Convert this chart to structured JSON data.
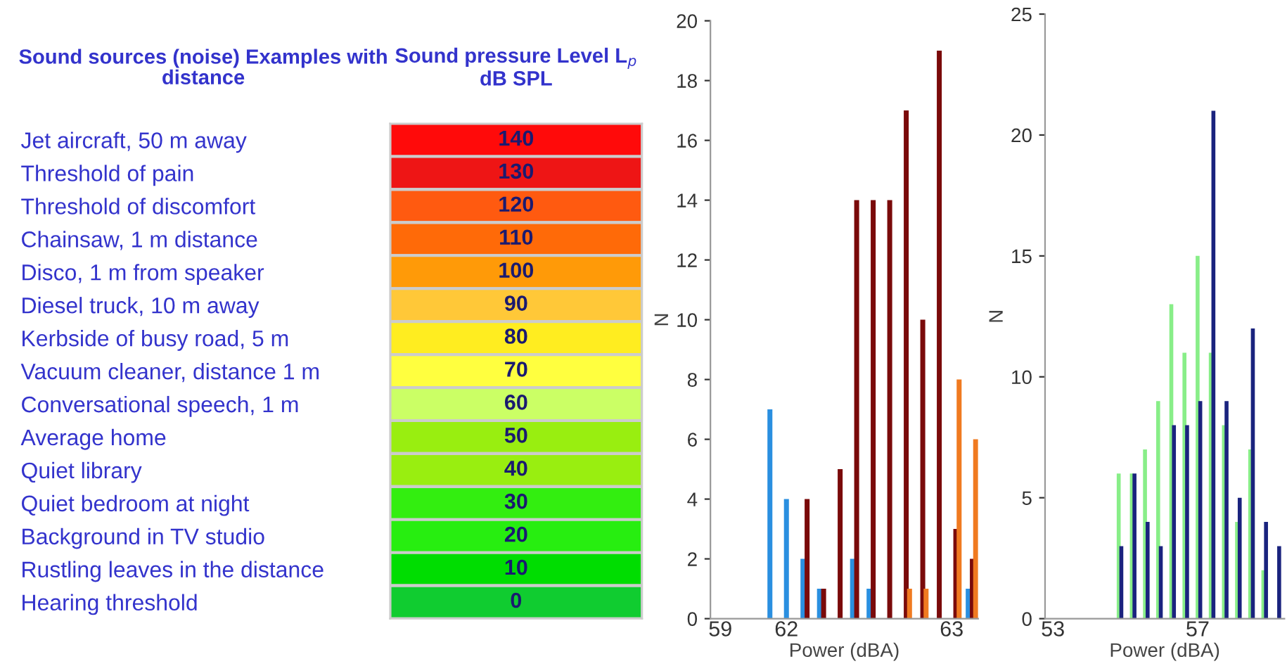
{
  "chart_data": [
    {
      "type": "heatmap",
      "ylabel": "Sound sources (noise) Examples with distance",
      "categories": [
        "Sound pressure Level L$_{p}$ dB SPL"
      ],
      "y_categories": [
        "Jet aircraft, 50 m away",
        "Threshold of pain",
        "Threshold of discomfort",
        "Chainsaw, 1 m distance",
        "Disco, 1 m from speaker",
        "Diesel truck, 10 m away",
        "Kerbside of busy road, 5 m",
        "Vacuum cleaner, distance 1 m",
        "Conversational speech, 1 m",
        "Average home",
        "Quiet library",
        "Quiet bedroom at night",
        "Background in TV studio",
        "Rustling leaves in the distance",
        "Hearing threshold"
      ],
      "cells": [
        [
          140
        ],
        [
          130
        ],
        [
          120
        ],
        [
          110
        ],
        [
          100
        ],
        [
          90
        ],
        [
          80
        ],
        [
          70
        ],
        [
          60
        ],
        [
          50
        ],
        [
          40
        ],
        [
          30
        ],
        [
          20
        ],
        [
          10
        ],
        [
          0
        ]
      ],
      "colors": [
        "#ff0a0a",
        "#ee1515",
        "#ff5c10",
        "#ff6a08",
        "#ff9a08",
        "#ffc838",
        "#ffee20",
        "#ffff40",
        "#ccff66",
        "#99ee10",
        "#99ee10",
        "#33ee10",
        "#28ee10",
        "#00dd00",
        "#10cc30"
      ],
      "data_labels": true,
      "cell_labels": [
        [
          "140"
        ],
        [
          "130"
        ],
        [
          "120"
        ],
        [
          "110"
        ],
        [
          "100"
        ],
        [
          "90"
        ],
        [
          "80"
        ],
        [
          "70"
        ],
        [
          "60"
        ],
        [
          "50"
        ],
        [
          "40"
        ],
        [
          "30"
        ],
        [
          "20"
        ],
        [
          "10"
        ],
        [
          "0"
        ]
      ]
    },
    {
      "type": "bar",
      "xlabel": "Power (dBA)",
      "ylabel": "N",
      "categories": [
        "59",
        null,
        null,
        null,
        "62",
        null,
        null,
        null,
        null,
        null,
        null,
        null,
        null,
        null,
        "63",
        null
      ],
      "series": [
        {
          "color": "#2a8fe0",
          "values": [
            null,
            null,
            null,
            7,
            4,
            2,
            1,
            null,
            2,
            1,
            null,
            null,
            null,
            null,
            null,
            1
          ]
        },
        {
          "color": "#7a0a0a",
          "values": [
            null,
            null,
            null,
            null,
            null,
            4,
            1,
            5,
            14,
            14,
            14,
            17,
            10,
            19,
            3,
            2
          ]
        },
        {
          "color": "#f07a20",
          "values": [
            null,
            null,
            null,
            null,
            null,
            null,
            null,
            null,
            null,
            null,
            null,
            1,
            1,
            null,
            8,
            6
          ]
        }
      ],
      "ylim": [
        0,
        20
      ],
      "yticks": [
        0,
        2,
        4,
        6,
        8,
        10,
        12,
        14,
        16,
        18,
        20
      ]
    },
    {
      "type": "bar",
      "xlabel": "Power (dBA)",
      "ylabel": "N",
      "categories": [
        "53",
        null,
        null,
        null,
        null,
        null,
        null,
        null,
        null,
        null,
        null,
        "57",
        null,
        null,
        null,
        null,
        null,
        null
      ],
      "series": [
        {
          "color": "#88ee88",
          "values": [
            null,
            null,
            null,
            null,
            null,
            6,
            6,
            7,
            9,
            13,
            11,
            15,
            11,
            8,
            4,
            7,
            2,
            null
          ]
        },
        {
          "color": "#1a237e",
          "values": [
            null,
            null,
            null,
            null,
            null,
            3,
            6,
            4,
            3,
            8,
            8,
            9,
            21,
            9,
            5,
            12,
            4,
            3
          ]
        }
      ],
      "ylim": [
        0,
        25
      ],
      "yticks": [
        0,
        5,
        10,
        15,
        20,
        25
      ]
    }
  ]
}
